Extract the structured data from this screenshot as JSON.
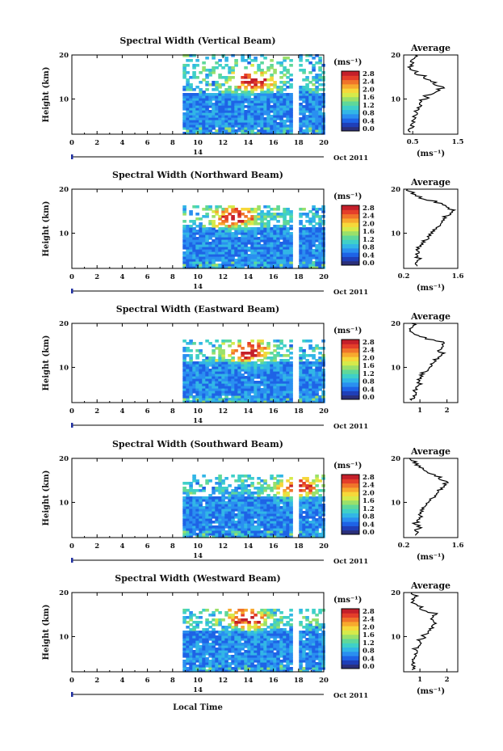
{
  "figure": {
    "x_label": "Local Time",
    "date_label": "Oct 2011",
    "day_label": "14",
    "colorbar_unit": "(ms⁻¹)",
    "colorbar_ticks": [
      "2.8",
      "2.4",
      "2.0",
      "1.6",
      "1.2",
      "0.8",
      "0.4",
      "0.0"
    ],
    "colorscale": [
      "#2b2f7a",
      "#1f3fb8",
      "#1e63e6",
      "#2a8ff0",
      "#32b6e6",
      "#3fd0c8",
      "#5fd89a",
      "#9ae06a",
      "#d6ea4a",
      "#f6d83a",
      "#f7a92e",
      "#f0742a",
      "#e43e2a",
      "#c41f2a"
    ]
  },
  "chart_data": [
    {
      "type": "heatmap",
      "title": "Spectral Width (Vertical Beam)",
      "ylabel": "Height (km)",
      "x_ticks": [
        0,
        2,
        4,
        6,
        8,
        10,
        12,
        14,
        16,
        18,
        20
      ],
      "xlim": [
        0,
        20
      ],
      "ylim": [
        2,
        20
      ],
      "y_ticks": [
        10,
        20
      ],
      "data_start": 8.8,
      "gap_x": [
        17.6,
        18.0
      ],
      "data_top": 20,
      "hot_center": [
        14.2,
        14.5
      ],
      "profile": {
        "title": "Average",
        "xlabel": "(ms⁻¹)",
        "xlim": [
          0.3,
          1.5
        ],
        "x_ticks": [
          0.5,
          1.5
        ],
        "x_tick_labels": [
          "0.5",
          "1.5"
        ],
        "y_ticks": [
          10,
          20
        ],
        "x": [
          0.45,
          0.4,
          0.5,
          0.45,
          0.5,
          0.48,
          0.55,
          0.5,
          0.6,
          0.58,
          0.62,
          0.6,
          0.7,
          0.65,
          0.7,
          0.8,
          0.78,
          0.9,
          1.0,
          1.1,
          1.2,
          1.05,
          0.95,
          0.9,
          0.8,
          0.75,
          0.6,
          0.55,
          0.5,
          0.45,
          0.5,
          0.5,
          0.45,
          0.5,
          0.55,
          0.55
        ],
        "y": [
          2.5,
          3,
          3.5,
          4,
          4.5,
          5,
          5.5,
          6,
          6.5,
          7,
          7.5,
          8,
          8.5,
          9,
          9.5,
          10,
          10.5,
          11,
          11.5,
          12,
          12.5,
          13,
          13.5,
          14,
          14.5,
          15,
          15.5,
          16,
          16.5,
          17,
          17.5,
          18,
          18.5,
          19,
          19.5,
          20
        ]
      }
    },
    {
      "type": "heatmap",
      "title": "Spectral Width (Northward Beam)",
      "ylabel": "Height (km)",
      "x_ticks": [
        0,
        2,
        4,
        6,
        8,
        10,
        12,
        14,
        16,
        18,
        20
      ],
      "xlim": [
        0,
        20
      ],
      "ylim": [
        2,
        20
      ],
      "y_ticks": [
        10,
        20
      ],
      "data_start": 8.8,
      "gap_x": [
        17.6,
        18.0
      ],
      "data_top": 16.5,
      "hot_center": [
        12.8,
        14.0
      ],
      "profile": {
        "title": "Average",
        "xlabel": "(ms⁻¹)",
        "xlim": [
          0.2,
          1.6
        ],
        "x_ticks": [
          0.2,
          1.6
        ],
        "x_tick_labels": [
          "0.2",
          "1.6"
        ],
        "y_ticks": [
          10,
          20
        ],
        "x": [
          0.55,
          0.5,
          0.55,
          0.6,
          0.5,
          0.55,
          0.6,
          0.55,
          0.6,
          0.65,
          0.7,
          0.75,
          0.8,
          0.85,
          0.9,
          0.95,
          1.0,
          1.05,
          1.1,
          1.15,
          1.2,
          1.25,
          1.3,
          1.35,
          1.4,
          1.45,
          1.35,
          1.3,
          1.2,
          1.0,
          0.8,
          0.6,
          0.5,
          0.4,
          0.35,
          0.3
        ],
        "y": [
          2.5,
          3,
          3.5,
          4,
          4.5,
          5,
          5.5,
          6,
          6.5,
          7,
          7.5,
          8,
          8.5,
          9,
          9.5,
          10,
          10.5,
          11,
          11.5,
          12,
          12.5,
          13,
          13.5,
          14,
          14.5,
          15,
          15.5,
          16,
          16.5,
          17,
          17.5,
          18,
          18.5,
          19,
          19.5,
          20
        ]
      }
    },
    {
      "type": "heatmap",
      "title": "Spectral Width (Eastward Beam)",
      "ylabel": "Height (km)",
      "x_ticks": [
        0,
        2,
        4,
        6,
        8,
        10,
        12,
        14,
        16,
        18,
        20
      ],
      "xlim": [
        0,
        20
      ],
      "ylim": [
        2,
        20
      ],
      "y_ticks": [
        10,
        20
      ],
      "data_start": 8.8,
      "gap_x": [
        17.6,
        18.0
      ],
      "data_top": 16.5,
      "hot_center": [
        13.8,
        14.0
      ],
      "profile": {
        "title": "Average",
        "xlabel": "",
        "xlim": [
          0.4,
          2.4
        ],
        "x_ticks": [
          1,
          2
        ],
        "x_tick_labels": [
          "1",
          "2"
        ],
        "y_ticks": [
          10,
          20
        ],
        "x": [
          0.7,
          0.8,
          0.75,
          0.85,
          0.8,
          0.9,
          0.85,
          0.95,
          0.9,
          1.0,
          1.05,
          1.1,
          1.15,
          1.2,
          1.3,
          1.35,
          1.45,
          1.5,
          1.6,
          1.7,
          1.75,
          1.8,
          1.7,
          1.75,
          1.8,
          1.85,
          1.9,
          1.6,
          1.2,
          1.0,
          0.8,
          0.7,
          0.65,
          0.7,
          0.75,
          0.7
        ],
        "y": [
          2.5,
          3,
          3.5,
          4,
          4.5,
          5,
          5.5,
          6,
          6.5,
          7,
          7.5,
          8,
          8.5,
          9,
          9.5,
          10,
          10.5,
          11,
          11.5,
          12,
          12.5,
          13,
          13.5,
          14,
          14.5,
          15,
          15.5,
          16,
          16.5,
          17,
          17.5,
          18,
          18.5,
          19,
          19.5,
          20
        ]
      }
    },
    {
      "type": "heatmap",
      "title": "Spectral Width (Southward Beam)",
      "ylabel": "Height (km)",
      "x_ticks": [
        0,
        2,
        4,
        6,
        8,
        10,
        12,
        14,
        16,
        18,
        20
      ],
      "xlim": [
        0,
        20
      ],
      "ylim": [
        2,
        20
      ],
      "y_ticks": [
        10,
        20
      ],
      "data_start": 8.8,
      "gap_x": [
        17.6,
        18.0
      ],
      "data_top": 16.5,
      "hot_center": [
        17.8,
        14.0
      ],
      "profile": {
        "title": "Average",
        "xlabel": "(ms⁻¹)",
        "xlim": [
          0.2,
          1.6
        ],
        "x_ticks": [
          0.2,
          1.6
        ],
        "x_tick_labels": [
          "0.2",
          "1.6"
        ],
        "y_ticks": [
          10,
          20
        ],
        "x": [
          0.5,
          0.55,
          0.5,
          0.6,
          0.55,
          0.5,
          0.6,
          0.55,
          0.6,
          0.62,
          0.65,
          0.7,
          0.72,
          0.75,
          0.8,
          0.85,
          0.9,
          0.95,
          1.0,
          1.05,
          1.1,
          1.2,
          1.25,
          1.3,
          1.35,
          1.2,
          1.1,
          1.0,
          0.9,
          0.8,
          0.7,
          0.6,
          0.5,
          0.45,
          0.4,
          0.35
        ],
        "y": [
          2.5,
          3,
          3.5,
          4,
          4.5,
          5,
          5.5,
          6,
          6.5,
          7,
          7.5,
          8,
          8.5,
          9,
          9.5,
          10,
          10.5,
          11,
          11.5,
          12,
          12.5,
          13,
          13.5,
          14,
          14.5,
          15,
          15.5,
          16,
          16.5,
          17,
          17.5,
          18,
          18.5,
          19,
          19.5,
          20
        ]
      }
    },
    {
      "type": "heatmap",
      "title": "Spectral Width (Westward Beam)",
      "ylabel": "Height (km)",
      "x_ticks": [
        0,
        2,
        4,
        6,
        8,
        10,
        12,
        14,
        16,
        18,
        20
      ],
      "xlim": [
        0,
        20
      ],
      "ylim": [
        2,
        20
      ],
      "y_ticks": [
        10,
        20
      ],
      "data_start": 8.8,
      "gap_x": [
        17.6,
        18.0
      ],
      "data_top": 16.5,
      "hot_center": [
        13.8,
        14.5
      ],
      "profile": {
        "title": "Average",
        "xlabel": "(ms⁻¹)",
        "xlim": [
          0.4,
          2.4
        ],
        "x_ticks": [
          1,
          2
        ],
        "x_tick_labels": [
          "1",
          "2"
        ],
        "y_ticks": [
          10,
          20
        ],
        "x": [
          0.7,
          0.75,
          0.7,
          0.8,
          0.75,
          0.8,
          0.85,
          0.8,
          0.9,
          0.85,
          0.95,
          1.0,
          1.05,
          1.0,
          1.1,
          1.15,
          1.2,
          1.3,
          1.4,
          1.5,
          1.45,
          1.6,
          1.5,
          1.4,
          1.5,
          1.6,
          1.3,
          1.1,
          1.0,
          0.9,
          0.8,
          0.75,
          0.7,
          0.8,
          0.75,
          0.7
        ],
        "y": [
          2.5,
          3,
          3.5,
          4,
          4.5,
          5,
          5.5,
          6,
          6.5,
          7,
          7.5,
          8,
          8.5,
          9,
          9.5,
          10,
          10.5,
          11,
          11.5,
          12,
          12.5,
          13,
          13.5,
          14,
          14.5,
          15,
          15.5,
          16,
          16.5,
          17,
          17.5,
          18,
          18.5,
          19,
          19.5,
          20
        ]
      }
    }
  ]
}
